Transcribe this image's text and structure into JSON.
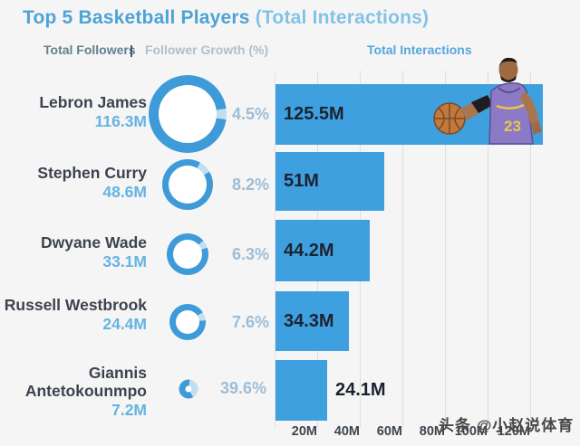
{
  "title": {
    "main": "Top 5 Basketball Players",
    "paren": "(Total Interactions)"
  },
  "legend": {
    "followers": "Total Followers",
    "separator": "|",
    "growth": "Follower Growth (%)",
    "interactions": "Total Interactions"
  },
  "watermark": "头条 @小赵说体育",
  "colors": {
    "background": "#f5f5f6",
    "bar_fill": "#3fa0e0",
    "donut_main": "#3e9bd8",
    "donut_growth_segment": "#c2def1",
    "title_blue": "#4da3d6",
    "follower_count_blue": "#66b3e1",
    "growth_pct_gray_blue": "#9ebdd4",
    "bar_label_dark": "#1c222e"
  },
  "decoration": {
    "player_image": "lebron-james-lakers-purple-jersey-holding-basketball"
  },
  "chart_data": {
    "type": "bar",
    "orientation": "horizontal",
    "title": "Top 5 Basketball Players (Total Interactions)",
    "xlabel": "Total Interactions",
    "ylabel": "",
    "grid": true,
    "xlim_m": [
      0,
      138
    ],
    "players": [
      {
        "name": "Lebron James",
        "followers_label": "116.3M",
        "followers_m": 116.3,
        "growth_label": "4.5%",
        "growth_pct": 4.5,
        "interactions_label": "125.5M",
        "interactions_m": 125.5
      },
      {
        "name": "Stephen Curry",
        "followers_label": "48.6M",
        "followers_m": 48.6,
        "growth_label": "8.2%",
        "growth_pct": 8.2,
        "interactions_label": "51M",
        "interactions_m": 51
      },
      {
        "name": "Dwyane Wade",
        "followers_label": "33.1M",
        "followers_m": 33.1,
        "growth_label": "6.3%",
        "growth_pct": 6.3,
        "interactions_label": "44.2M",
        "interactions_m": 44.2
      },
      {
        "name": "Russell Westbrook",
        "followers_label": "24.4M",
        "followers_m": 24.4,
        "growth_label": "7.6%",
        "growth_pct": 7.6,
        "interactions_label": "34.3M",
        "interactions_m": 34.3
      },
      {
        "name": "Giannis Antetokounmpo",
        "followers_label": "7.2M",
        "followers_m": 7.2,
        "growth_label": "39.6%",
        "growth_pct": 39.6,
        "interactions_label": "24.1M",
        "interactions_m": 24.1
      }
    ],
    "x_axis": {
      "ticks": [
        "20M",
        "40M",
        "60M",
        "80M",
        "100M",
        "120M"
      ],
      "tick_values_m": [
        20,
        40,
        60,
        80,
        100,
        120
      ]
    }
  }
}
